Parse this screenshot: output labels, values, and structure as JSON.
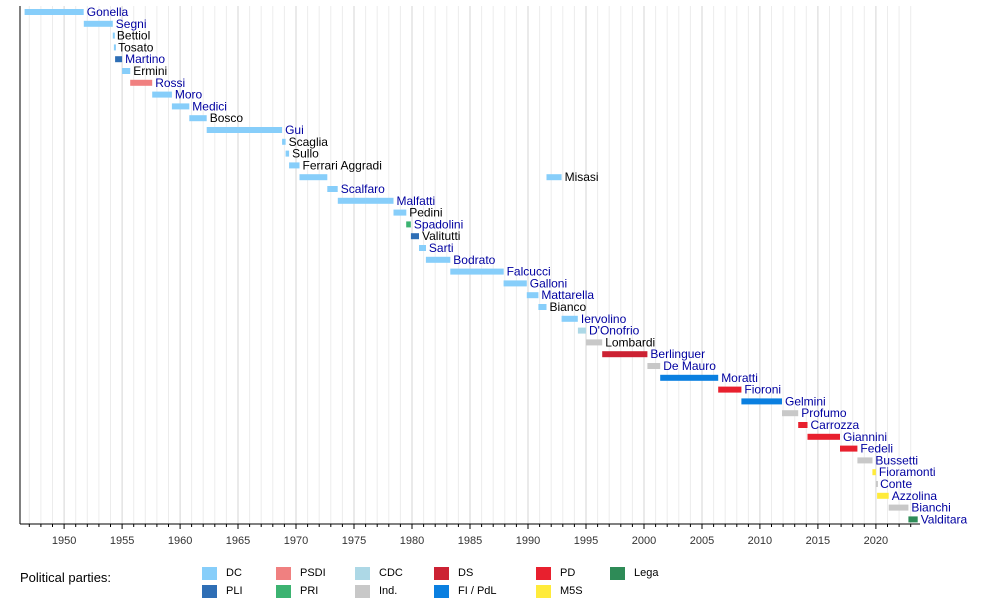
{
  "chart_data": {
    "type": "timeline",
    "title": "",
    "xlabel": "",
    "ylabel": "",
    "xlim": [
      1946.2,
      2023.8
    ],
    "x_ticks": [
      1950,
      1955,
      1960,
      1965,
      1970,
      1975,
      1980,
      1985,
      1990,
      1995,
      2000,
      2005,
      2010,
      2015,
      2020
    ],
    "grid": "vertical",
    "parties": {
      "DC": {
        "label": "DC",
        "color": "#87CEFA"
      },
      "PLI": {
        "label": "PLI",
        "color": "#2E6EB5"
      },
      "PSDI": {
        "label": "PSDI",
        "color": "#F08080"
      },
      "PRI": {
        "label": "PRI",
        "color": "#3CB371"
      },
      "CDC": {
        "label": "CDC",
        "color": "#ADD8E6"
      },
      "Ind": {
        "label": "Ind.",
        "color": "#C8C8C8"
      },
      "DS": {
        "label": "DS",
        "color": "#CC2233"
      },
      "FI": {
        "label": "FI / PdL",
        "color": "#0A7FE0"
      },
      "PD": {
        "label": "PD",
        "color": "#E8202E"
      },
      "M5S": {
        "label": "M5S",
        "color": "#FFEB3B"
      },
      "Lega": {
        "label": "Lega",
        "color": "#2E8B57"
      }
    },
    "ministers": [
      {
        "name": "Gonella",
        "party": "DC",
        "start": 1946.6,
        "end": 1951.7,
        "link": true
      },
      {
        "name": "Segni",
        "party": "DC",
        "start": 1951.7,
        "end": 1954.2,
        "link": true
      },
      {
        "name": "Bettiol",
        "party": "DC",
        "start": 1954.2,
        "end": 1954.3,
        "link": false
      },
      {
        "name": "Tosato",
        "party": "DC",
        "start": 1954.3,
        "end": 1954.4,
        "link": false
      },
      {
        "name": "Martino",
        "party": "PLI",
        "start": 1954.4,
        "end": 1955.0,
        "link": true
      },
      {
        "name": "Ermini",
        "party": "DC",
        "start": 1955.0,
        "end": 1955.7,
        "link": false
      },
      {
        "name": "Rossi",
        "party": "PSDI",
        "start": 1955.7,
        "end": 1957.6,
        "link": true
      },
      {
        "name": "Moro",
        "party": "DC",
        "start": 1957.6,
        "end": 1959.3,
        "link": true
      },
      {
        "name": "Medici",
        "party": "DC",
        "start": 1959.3,
        "end": 1960.8,
        "link": true
      },
      {
        "name": "Bosco",
        "party": "DC",
        "start": 1960.8,
        "end": 1962.3,
        "link": false
      },
      {
        "name": "Gui",
        "party": "DC",
        "start": 1962.3,
        "end": 1968.8,
        "link": true
      },
      {
        "name": "Scaglia",
        "party": "DC",
        "start": 1968.8,
        "end": 1969.1,
        "link": false
      },
      {
        "name": "Sullo",
        "party": "DC",
        "start": 1969.1,
        "end": 1969.4,
        "link": false
      },
      {
        "name": "Ferrari Aggradi",
        "party": "DC",
        "start": 1969.4,
        "end": 1970.3,
        "link": false
      },
      {
        "name": "Misasi",
        "party": "DC",
        "start": 1970.3,
        "end": 1972.7,
        "link": false
      },
      {
        "name": "Misasi",
        "party": "DC",
        "start": 1991.6,
        "end": 1992.9,
        "link": false,
        "label": false
      },
      {
        "name": "Scalfaro",
        "party": "DC",
        "start": 1972.7,
        "end": 1973.6,
        "link": true
      },
      {
        "name": "Malfatti",
        "party": "DC",
        "start": 1973.6,
        "end": 1978.4,
        "link": true
      },
      {
        "name": "Pedini",
        "party": "DC",
        "start": 1978.4,
        "end": 1979.5,
        "link": false
      },
      {
        "name": "Spadolini",
        "party": "PRI",
        "start": 1979.5,
        "end": 1979.9,
        "link": true
      },
      {
        "name": "Valitutti",
        "party": "PLI",
        "start": 1979.9,
        "end": 1980.6,
        "link": false
      },
      {
        "name": "Sarti",
        "party": "DC",
        "start": 1980.6,
        "end": 1981.2,
        "link": true
      },
      {
        "name": "Bodrato",
        "party": "DC",
        "start": 1981.2,
        "end": 1983.3,
        "link": true
      },
      {
        "name": "Falcucci",
        "party": "DC",
        "start": 1983.3,
        "end": 1987.9,
        "link": true
      },
      {
        "name": "Galloni",
        "party": "DC",
        "start": 1987.9,
        "end": 1989.9,
        "link": true
      },
      {
        "name": "Mattarella",
        "party": "DC",
        "start": 1989.9,
        "end": 1990.9,
        "link": true
      },
      {
        "name": "Bianco",
        "party": "DC",
        "start": 1990.9,
        "end": 1991.6,
        "link": false
      },
      {
        "name": "Iervolino",
        "party": "DC",
        "start": 1992.9,
        "end": 1994.3,
        "link": true
      },
      {
        "name": "D'Onofrio",
        "party": "CDC",
        "start": 1994.3,
        "end": 1995.0,
        "link": true
      },
      {
        "name": "Lombardi",
        "party": "Ind",
        "start": 1995.0,
        "end": 1996.4,
        "link": false
      },
      {
        "name": "Berlinguer",
        "party": "DS",
        "start": 1996.4,
        "end": 2000.3,
        "link": true
      },
      {
        "name": "De Mauro",
        "party": "Ind",
        "start": 2000.3,
        "end": 2001.4,
        "link": true
      },
      {
        "name": "Moratti",
        "party": "FI",
        "start": 2001.4,
        "end": 2006.4,
        "link": true
      },
      {
        "name": "Fioroni",
        "party": "PD",
        "start": 2006.4,
        "end": 2008.4,
        "link": true
      },
      {
        "name": "Gelmini",
        "party": "FI",
        "start": 2008.4,
        "end": 2011.9,
        "link": true
      },
      {
        "name": "Profumo",
        "party": "Ind",
        "start": 2011.9,
        "end": 2013.3,
        "link": true
      },
      {
        "name": "Carrozza",
        "party": "PD",
        "start": 2013.3,
        "end": 2014.1,
        "link": true
      },
      {
        "name": "Giannini",
        "party": "PD",
        "start": 2014.1,
        "end": 2016.9,
        "link": true
      },
      {
        "name": "Fedeli",
        "party": "PD",
        "start": 2016.9,
        "end": 2018.4,
        "link": true
      },
      {
        "name": "Bussetti",
        "party": "Ind",
        "start": 2018.4,
        "end": 2019.7,
        "link": true
      },
      {
        "name": "Fioramonti",
        "party": "M5S",
        "start": 2019.7,
        "end": 2020.0,
        "link": true
      },
      {
        "name": "Conte",
        "party": "Ind",
        "start": 2020.0,
        "end": 2020.1,
        "link": true
      },
      {
        "name": "Azzolina",
        "party": "M5S",
        "start": 2020.1,
        "end": 2021.1,
        "link": true
      },
      {
        "name": "Bianchi",
        "party": "Ind",
        "start": 2021.1,
        "end": 2022.8,
        "link": true
      },
      {
        "name": "Valditara",
        "party": "Lega",
        "start": 2022.8,
        "end": 2023.6,
        "link": true
      }
    ]
  },
  "legend": {
    "title": "Political parties:",
    "items": [
      {
        "key": "DC",
        "label": "DC",
        "color": "#87CEFA"
      },
      {
        "key": "PLI",
        "label": "PLI",
        "color": "#2E6EB5"
      },
      {
        "key": "PSDI",
        "label": "PSDI",
        "color": "#F08080"
      },
      {
        "key": "PRI",
        "label": "PRI",
        "color": "#3CB371"
      },
      {
        "key": "CDC",
        "label": "CDC",
        "color": "#ADD8E6"
      },
      {
        "key": "Ind",
        "label": "Ind.",
        "color": "#C8C8C8"
      },
      {
        "key": "DS",
        "label": "DS",
        "color": "#CC2233"
      },
      {
        "key": "FI",
        "label": "FI / PdL",
        "color": "#0A7FE0"
      },
      {
        "key": "PD",
        "label": "PD",
        "color": "#E8202E"
      },
      {
        "key": "M5S",
        "label": "M5S",
        "color": "#FFEB3B"
      },
      {
        "key": "Lega",
        "label": "Lega",
        "color": "#2E8B57"
      }
    ]
  }
}
